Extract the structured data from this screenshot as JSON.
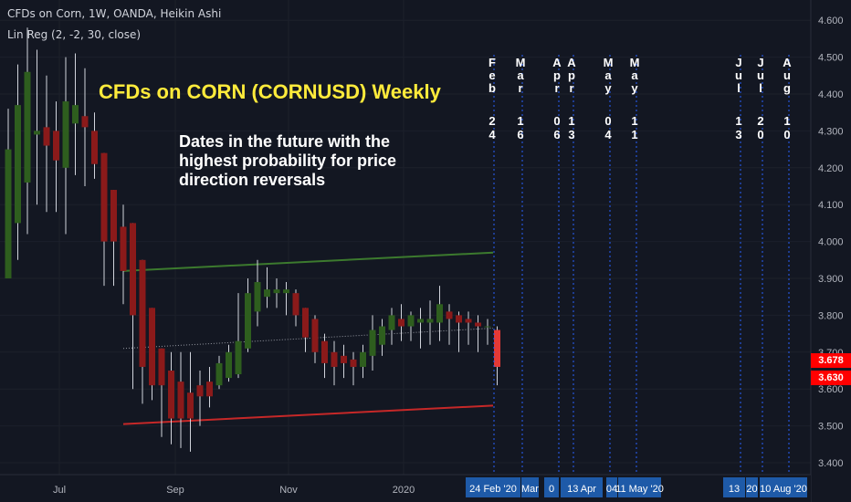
{
  "header": {
    "line1": "CFDs on Corn, 1W, OANDA, Heikin Ashi",
    "line2": "Lin Reg (2, -2, 30, close)"
  },
  "overlay": {
    "title": "CFDs on CORN (CORNUSD) Weekly",
    "subtitle_lines": [
      "Dates in the future with the",
      "highest probability for price",
      "direction reversals"
    ]
  },
  "price_tags": {
    "upper": "3.678",
    "lower": "3.630"
  },
  "colors": {
    "background": "#131722",
    "bull": "#2e5e1e",
    "bear": "#8b1a1a",
    "upper_channel": "#3c7a2e",
    "lower_channel": "#c62828",
    "midline": "#9598a1",
    "title": "#ffeb3b",
    "tag": "#ff0000",
    "date_box": "#1e5aa8",
    "date_line": "#2962ff"
  },
  "chart_data": {
    "type": "candlestick",
    "style": "Heikin Ashi",
    "interval": "1W",
    "y_axis": {
      "ticks": [
        "3.400",
        "3.500",
        "3.600",
        "3.700",
        "3.800",
        "3.900",
        "4.000",
        "4.100",
        "4.200",
        "4.300",
        "4.400",
        "4.500",
        "4.600"
      ],
      "range": [
        3.38,
        4.65
      ]
    },
    "x_axis": {
      "ticks": [
        "Jul",
        "Sep",
        "Nov",
        "2020"
      ]
    },
    "candles": [
      {
        "o": 3.9,
        "c": 4.25,
        "h": 4.36,
        "l": 3.9
      },
      {
        "o": 4.05,
        "c": 4.37,
        "h": 4.48,
        "l": 3.95
      },
      {
        "o": 4.16,
        "c": 4.46,
        "h": 4.58,
        "l": 4.02
      },
      {
        "o": 4.29,
        "c": 4.3,
        "h": 4.52,
        "l": 4.1
      },
      {
        "o": 4.31,
        "c": 4.26,
        "h": 4.45,
        "l": 4.08
      },
      {
        "o": 4.3,
        "c": 4.22,
        "h": 4.38,
        "l": 4.08
      },
      {
        "o": 4.2,
        "c": 4.38,
        "h": 4.5,
        "l": 4.02
      },
      {
        "o": 4.32,
        "c": 4.37,
        "h": 4.51,
        "l": 4.18
      },
      {
        "o": 4.34,
        "c": 4.31,
        "h": 4.47,
        "l": 4.15
      },
      {
        "o": 4.3,
        "c": 4.21,
        "h": 4.35,
        "l": 4.17
      },
      {
        "o": 4.24,
        "c": 4.0,
        "h": 4.24,
        "l": 3.88
      },
      {
        "o": 4.14,
        "c": 4.0,
        "h": 4.14,
        "l": 3.88
      },
      {
        "o": 4.04,
        "c": 3.92,
        "h": 4.1,
        "l": 3.83
      },
      {
        "o": 4.05,
        "c": 3.8,
        "h": 4.05,
        "l": 3.6
      },
      {
        "o": 3.95,
        "c": 3.66,
        "h": 3.95,
        "l": 3.56
      },
      {
        "o": 3.82,
        "c": 3.61,
        "h": 3.82,
        "l": 3.57
      },
      {
        "o": 3.71,
        "c": 3.61,
        "h": 3.71,
        "l": 3.47
      },
      {
        "o": 3.65,
        "c": 3.52,
        "h": 3.7,
        "l": 3.45
      },
      {
        "o": 3.62,
        "c": 3.52,
        "h": 3.7,
        "l": 3.44
      },
      {
        "o": 3.59,
        "c": 3.52,
        "h": 3.7,
        "l": 3.43
      },
      {
        "o": 3.61,
        "c": 3.58,
        "h": 3.65,
        "l": 3.5
      },
      {
        "o": 3.62,
        "c": 3.58,
        "h": 3.66,
        "l": 3.55
      },
      {
        "o": 3.61,
        "c": 3.67,
        "h": 3.69,
        "l": 3.6
      },
      {
        "o": 3.63,
        "c": 3.7,
        "h": 3.72,
        "l": 3.62
      },
      {
        "o": 3.64,
        "c": 3.73,
        "h": 3.86,
        "l": 3.63
      },
      {
        "o": 3.71,
        "c": 3.86,
        "h": 3.9,
        "l": 3.7
      },
      {
        "o": 3.81,
        "c": 3.89,
        "h": 3.95,
        "l": 3.77
      },
      {
        "o": 3.85,
        "c": 3.87,
        "h": 3.93,
        "l": 3.82
      },
      {
        "o": 3.86,
        "c": 3.87,
        "h": 3.9,
        "l": 3.82
      },
      {
        "o": 3.86,
        "c": 3.87,
        "h": 3.89,
        "l": 3.8
      },
      {
        "o": 3.86,
        "c": 3.8,
        "h": 3.87,
        "l": 3.77
      },
      {
        "o": 3.82,
        "c": 3.74,
        "h": 3.82,
        "l": 3.7
      },
      {
        "o": 3.79,
        "c": 3.7,
        "h": 3.8,
        "l": 3.67
      },
      {
        "o": 3.73,
        "c": 3.67,
        "h": 3.75,
        "l": 3.63
      },
      {
        "o": 3.7,
        "c": 3.66,
        "h": 3.73,
        "l": 3.61
      },
      {
        "o": 3.69,
        "c": 3.67,
        "h": 3.72,
        "l": 3.63
      },
      {
        "o": 3.68,
        "c": 3.66,
        "h": 3.7,
        "l": 3.61
      },
      {
        "o": 3.66,
        "c": 3.7,
        "h": 3.72,
        "l": 3.63
      },
      {
        "o": 3.69,
        "c": 3.76,
        "h": 3.8,
        "l": 3.65
      },
      {
        "o": 3.72,
        "c": 3.77,
        "h": 3.79,
        "l": 3.69
      },
      {
        "o": 3.76,
        "c": 3.8,
        "h": 3.82,
        "l": 3.72
      },
      {
        "o": 3.79,
        "c": 3.77,
        "h": 3.83,
        "l": 3.73
      },
      {
        "o": 3.77,
        "c": 3.8,
        "h": 3.81,
        "l": 3.73
      },
      {
        "o": 3.78,
        "c": 3.79,
        "h": 3.82,
        "l": 3.71
      },
      {
        "o": 3.78,
        "c": 3.79,
        "h": 3.84,
        "l": 3.72
      },
      {
        "o": 3.78,
        "c": 3.83,
        "h": 3.88,
        "l": 3.73
      },
      {
        "o": 3.81,
        "c": 3.79,
        "h": 3.83,
        "l": 3.72
      },
      {
        "o": 3.8,
        "c": 3.78,
        "h": 3.81,
        "l": 3.7
      },
      {
        "o": 3.79,
        "c": 3.78,
        "h": 3.81,
        "l": 3.72
      },
      {
        "o": 3.78,
        "c": 3.77,
        "h": 3.8,
        "l": 3.7
      },
      {
        "o": 3.77,
        "c": 3.77,
        "h": 3.79,
        "l": 3.72
      },
      {
        "o": 3.76,
        "c": 3.66,
        "h": 3.77,
        "l": 3.61
      }
    ],
    "channel": {
      "upper": {
        "start": 3.92,
        "end": 3.97
      },
      "mid": {
        "start": 3.71,
        "end": 3.765
      },
      "lower": {
        "start": 3.505,
        "end": 3.555
      }
    },
    "future_dates": [
      {
        "month": "Feb",
        "day": "24",
        "axis_label": "24 Feb '20"
      },
      {
        "month": "Mar",
        "day": "16",
        "axis_label": "Mar"
      },
      {
        "month": "Apr",
        "day": "06",
        "axis_label": "0"
      },
      {
        "month": "Apr",
        "day": "13",
        "axis_label": "13 Apr"
      },
      {
        "month": "May",
        "day": "04",
        "axis_label": "04"
      },
      {
        "month": "May",
        "day": "11",
        "axis_label": "11 May '20"
      },
      {
        "month": "Jul",
        "day": "13",
        "axis_label": "13"
      },
      {
        "month": "Jul",
        "day": "20",
        "axis_label": "20"
      },
      {
        "month": "Aug",
        "day": "10",
        "axis_label": "10 Aug '20"
      }
    ]
  }
}
